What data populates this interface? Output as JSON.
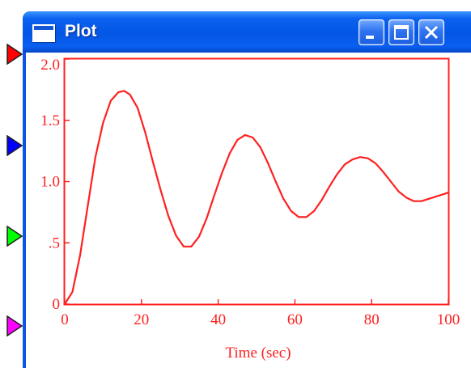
{
  "window": {
    "title": "Plot",
    "title_icon": "window-icon",
    "buttons": [
      "minimize-icon",
      "maximize-icon",
      "close-icon"
    ]
  },
  "ports": [
    {
      "name": "input-port-1",
      "color": "#ff0000"
    },
    {
      "name": "input-port-2",
      "color": "#0000ff"
    },
    {
      "name": "input-port-3",
      "color": "#00ff00"
    },
    {
      "name": "input-port-4",
      "color": "#ff00ff"
    }
  ],
  "colors": {
    "titlebar": "#0456e5",
    "plot": "#ff2020"
  },
  "chart_data": {
    "type": "line",
    "xlabel": "Time (sec)",
    "ylabel": "",
    "xlim": [
      0,
      100
    ],
    "ylim": [
      0,
      2.0
    ],
    "xticks": [
      {
        "value": 0,
        "label": "0"
      },
      {
        "value": 20,
        "label": "20"
      },
      {
        "value": 40,
        "label": "40"
      },
      {
        "value": 60,
        "label": "60"
      },
      {
        "value": 80,
        "label": "80"
      },
      {
        "value": 100,
        "label": "100"
      }
    ],
    "yticks": [
      {
        "value": 0,
        "label": "0"
      },
      {
        "value": 0.5,
        "label": ".5"
      },
      {
        "value": 1.0,
        "label": "1.0"
      },
      {
        "value": 1.5,
        "label": "1.5"
      },
      {
        "value": 2.0,
        "label": "2.0"
      }
    ],
    "grid": false,
    "series": [
      {
        "color": "#ff2020",
        "x": [
          0,
          2,
          4,
          6,
          8,
          10,
          12,
          14,
          15.5,
          17,
          19,
          21,
          23,
          25,
          27,
          29,
          31,
          33,
          35,
          37,
          39,
          41,
          43,
          45,
          47,
          49,
          51,
          53,
          55,
          57,
          59,
          61,
          63,
          65,
          67,
          69,
          71,
          73,
          75,
          77,
          79,
          81,
          83,
          85,
          87,
          89,
          91,
          93,
          95,
          97,
          99,
          100
        ],
        "y": [
          0.0,
          0.1,
          0.4,
          0.8,
          1.2,
          1.48,
          1.66,
          1.73,
          1.74,
          1.71,
          1.6,
          1.4,
          1.16,
          0.93,
          0.72,
          0.56,
          0.47,
          0.47,
          0.55,
          0.7,
          0.89,
          1.07,
          1.23,
          1.34,
          1.38,
          1.36,
          1.28,
          1.15,
          1.0,
          0.86,
          0.76,
          0.71,
          0.71,
          0.76,
          0.85,
          0.96,
          1.06,
          1.14,
          1.18,
          1.2,
          1.19,
          1.15,
          1.08,
          1.0,
          0.92,
          0.87,
          0.84,
          0.84,
          0.86,
          0.88,
          0.9,
          0.91
        ]
      }
    ]
  }
}
